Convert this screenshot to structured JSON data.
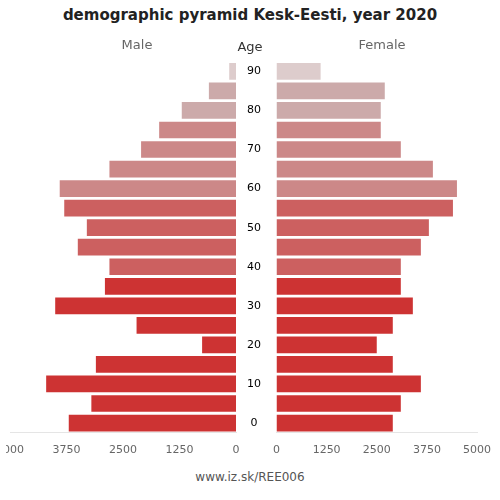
{
  "chart_data": {
    "type": "bar",
    "orientation": "horizontal",
    "title": "demographic pyramid Kesk-Eesti, year 2020",
    "ylabel": "Age",
    "annotations": [
      "www.iz.sk/REE006"
    ],
    "categories": [
      "0",
      null,
      "10",
      null,
      "20",
      null,
      "30",
      null,
      "40",
      null,
      "50",
      null,
      "60",
      null,
      "70",
      null,
      "80",
      null,
      "90"
    ],
    "series": [
      {
        "name": "Male",
        "values": [
          3700,
          3200,
          4200,
          3100,
          750,
          2200,
          4000,
          2900,
          2800,
          3500,
          3300,
          3800,
          3900,
          2800,
          2100,
          1700,
          1200,
          600,
          150
        ],
        "colors": [
          "#cd3333",
          "#cd3333",
          "#cd3333",
          "#cd3333",
          "#cd3333",
          "#cd3333",
          "#cd3333",
          "#cd3333",
          "#cc6060",
          "#cc6060",
          "#cc6060",
          "#cc6060",
          "#cc8888",
          "#cc8888",
          "#cc8888",
          "#cc8888",
          "#ccaaaa",
          "#ccaaaa",
          "#ddcccc"
        ]
      },
      {
        "name": "Female",
        "values": [
          2900,
          3100,
          3600,
          2900,
          2500,
          2900,
          3400,
          3100,
          3100,
          3600,
          3800,
          4400,
          4500,
          3900,
          3100,
          2600,
          2600,
          2700,
          1100
        ],
        "colors": [
          "#cd3333",
          "#cd3333",
          "#cd3333",
          "#cd3333",
          "#cd3333",
          "#cd3333",
          "#cd3333",
          "#cd3333",
          "#cc6060",
          "#cc6060",
          "#cc6060",
          "#cc6060",
          "#cc8888",
          "#cc8888",
          "#cc8888",
          "#cc8888",
          "#ccaaaa",
          "#ccaaaa",
          "#ddcccc"
        ]
      }
    ],
    "xlim": [
      0,
      5000
    ],
    "xticks": [
      0,
      1250,
      2500,
      3750,
      5000
    ],
    "grid": false
  }
}
